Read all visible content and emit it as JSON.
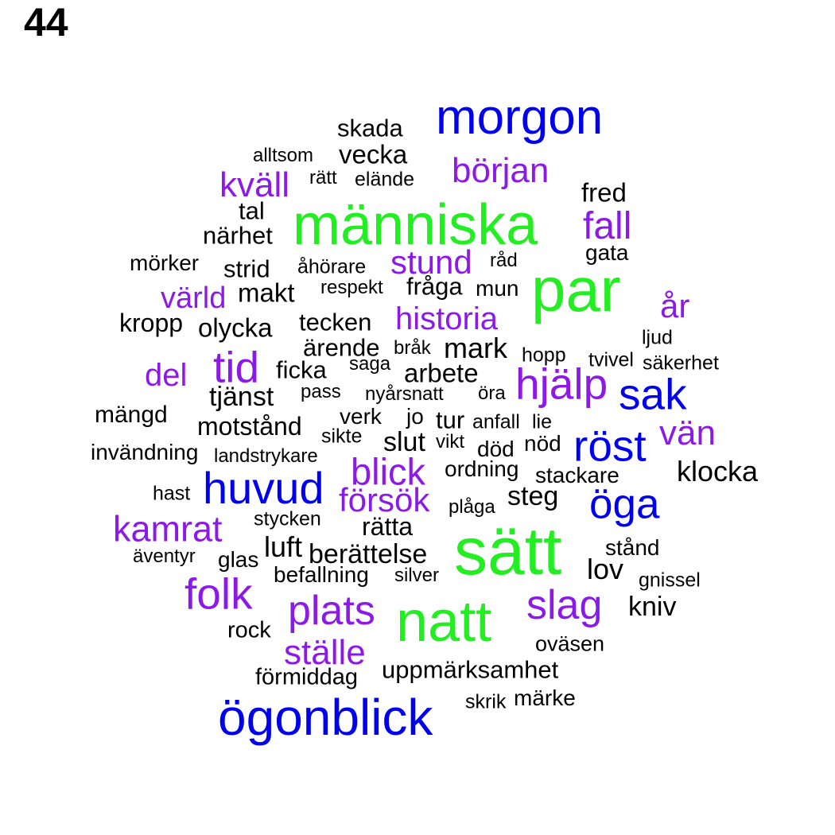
{
  "number": "44",
  "colors": {
    "green": "#22ee22",
    "blue": "#0000ee",
    "purple": "#8c1ae6",
    "black": "#000000"
  },
  "words": [
    {
      "text": "morgon",
      "color": "blue"
    },
    {
      "text": "skada",
      "color": "black"
    },
    {
      "text": "alltsom",
      "color": "black"
    },
    {
      "text": "vecka",
      "color": "black"
    },
    {
      "text": "början",
      "color": "purple"
    },
    {
      "text": "kväll",
      "color": "purple"
    },
    {
      "text": "rätt",
      "color": "black"
    },
    {
      "text": "elände",
      "color": "black"
    },
    {
      "text": "fred",
      "color": "black"
    },
    {
      "text": "tal",
      "color": "black"
    },
    {
      "text": "människa",
      "color": "green"
    },
    {
      "text": "fall",
      "color": "purple"
    },
    {
      "text": "närhet",
      "color": "black"
    },
    {
      "text": "gata",
      "color": "black"
    },
    {
      "text": "mörker",
      "color": "black"
    },
    {
      "text": "strid",
      "color": "black"
    },
    {
      "text": "åhörare",
      "color": "black"
    },
    {
      "text": "stund",
      "color": "purple"
    },
    {
      "text": "råd",
      "color": "black"
    },
    {
      "text": "par",
      "color": "green"
    },
    {
      "text": "värld",
      "color": "purple"
    },
    {
      "text": "makt",
      "color": "black"
    },
    {
      "text": "respekt",
      "color": "black"
    },
    {
      "text": "fråga",
      "color": "black"
    },
    {
      "text": "mun",
      "color": "black"
    },
    {
      "text": "år",
      "color": "purple"
    },
    {
      "text": "kropp",
      "color": "black"
    },
    {
      "text": "olycka",
      "color": "black"
    },
    {
      "text": "tecken",
      "color": "black"
    },
    {
      "text": "historia",
      "color": "purple"
    },
    {
      "text": "ljud",
      "color": "black"
    },
    {
      "text": "ärende",
      "color": "black"
    },
    {
      "text": "bråk",
      "color": "black"
    },
    {
      "text": "mark",
      "color": "black"
    },
    {
      "text": "hopp",
      "color": "black"
    },
    {
      "text": "tvivel",
      "color": "black"
    },
    {
      "text": "säkerhet",
      "color": "black"
    },
    {
      "text": "tid",
      "color": "purple"
    },
    {
      "text": "del",
      "color": "purple"
    },
    {
      "text": "ficka",
      "color": "black"
    },
    {
      "text": "saga",
      "color": "black"
    },
    {
      "text": "arbete",
      "color": "black"
    },
    {
      "text": "hjälp",
      "color": "purple"
    },
    {
      "text": "sak",
      "color": "blue"
    },
    {
      "text": "tjänst",
      "color": "black"
    },
    {
      "text": "pass",
      "color": "black"
    },
    {
      "text": "nyårsnatt",
      "color": "black"
    },
    {
      "text": "öra",
      "color": "black"
    },
    {
      "text": "mängd",
      "color": "black"
    },
    {
      "text": "motstånd",
      "color": "black"
    },
    {
      "text": "verk",
      "color": "black"
    },
    {
      "text": "jo",
      "color": "black"
    },
    {
      "text": "tur",
      "color": "black"
    },
    {
      "text": "anfall",
      "color": "black"
    },
    {
      "text": "lie",
      "color": "black"
    },
    {
      "text": "vän",
      "color": "purple"
    },
    {
      "text": "sikte",
      "color": "black"
    },
    {
      "text": "slut",
      "color": "black"
    },
    {
      "text": "vikt",
      "color": "black"
    },
    {
      "text": "död",
      "color": "black"
    },
    {
      "text": "nöd",
      "color": "black"
    },
    {
      "text": "röst",
      "color": "blue"
    },
    {
      "text": "invändning",
      "color": "black"
    },
    {
      "text": "landstrykare",
      "color": "black"
    },
    {
      "text": "blick",
      "color": "purple"
    },
    {
      "text": "ordning",
      "color": "black"
    },
    {
      "text": "klocka",
      "color": "black"
    },
    {
      "text": "stackare",
      "color": "black"
    },
    {
      "text": "huvud",
      "color": "blue"
    },
    {
      "text": "hast",
      "color": "black"
    },
    {
      "text": "försök",
      "color": "purple"
    },
    {
      "text": "steg",
      "color": "black"
    },
    {
      "text": "öga",
      "color": "blue"
    },
    {
      "text": "plåga",
      "color": "black"
    },
    {
      "text": "stycken",
      "color": "black"
    },
    {
      "text": "kamrat",
      "color": "purple"
    },
    {
      "text": "rätta",
      "color": "black"
    },
    {
      "text": "sätt",
      "color": "green"
    },
    {
      "text": "stånd",
      "color": "black"
    },
    {
      "text": "äventyr",
      "color": "black"
    },
    {
      "text": "luft",
      "color": "black"
    },
    {
      "text": "glas",
      "color": "black"
    },
    {
      "text": "berättelse",
      "color": "black"
    },
    {
      "text": "lov",
      "color": "black"
    },
    {
      "text": "befallning",
      "color": "black"
    },
    {
      "text": "silver",
      "color": "black"
    },
    {
      "text": "gnissel",
      "color": "black"
    },
    {
      "text": "folk",
      "color": "purple"
    },
    {
      "text": "slag",
      "color": "purple"
    },
    {
      "text": "kniv",
      "color": "black"
    },
    {
      "text": "plats",
      "color": "purple"
    },
    {
      "text": "natt",
      "color": "green"
    },
    {
      "text": "rock",
      "color": "black"
    },
    {
      "text": "oväsen",
      "color": "black"
    },
    {
      "text": "ställe",
      "color": "purple"
    },
    {
      "text": "uppmärksamhet",
      "color": "black"
    },
    {
      "text": "förmiddag",
      "color": "black"
    },
    {
      "text": "märke",
      "color": "black"
    },
    {
      "text": "skrik",
      "color": "black"
    },
    {
      "text": "ögonblick",
      "color": "blue"
    }
  ]
}
